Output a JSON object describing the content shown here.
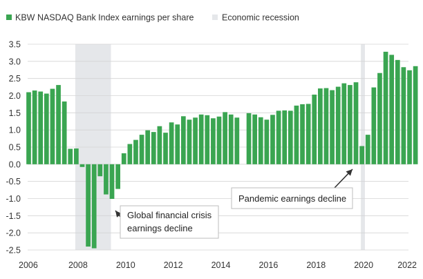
{
  "chart_data": {
    "type": "bar",
    "title": "",
    "xlabel": "",
    "ylabel": "",
    "ylim": [
      -2.5,
      3.5
    ],
    "xlim": [
      2006,
      2022
    ],
    "grid": "horizontal",
    "legend_position": "top-left",
    "colors": {
      "bar": "#3aa551",
      "recession": "#e5e7ea",
      "grid": "#d4d4d4",
      "axis_text": "#333333",
      "annotation_border": "#bdbdbd"
    },
    "legend": [
      {
        "label": "KBW NASDAQ Bank Index earnings per share",
        "color": "#3aa551"
      },
      {
        "label": "Economic recession",
        "color": "#e5e7ea"
      }
    ],
    "y_ticks": [
      "3.5",
      "3.0",
      "2.5",
      "2.0",
      "1.5",
      "1.0",
      "0.5",
      "0.0",
      "-0.5",
      "-1.0",
      "-1.5",
      "-2.0",
      "-2.5"
    ],
    "x_ticks": [
      "2006",
      "2008",
      "2010",
      "2012",
      "2014",
      "2016",
      "2018",
      "2020",
      "2022"
    ],
    "recessions": [
      {
        "start": 2008.0,
        "end": 2009.5
      },
      {
        "start": 2020.0,
        "end": 2020.17
      }
    ],
    "series": [
      {
        "name": "KBW NASDAQ Bank Index earnings per share",
        "points": [
          {
            "x": 2006.0,
            "y": 2.1
          },
          {
            "x": 2006.25,
            "y": 2.15
          },
          {
            "x": 2006.5,
            "y": 2.12
          },
          {
            "x": 2006.75,
            "y": 2.06
          },
          {
            "x": 2007.0,
            "y": 2.2
          },
          {
            "x": 2007.25,
            "y": 2.31
          },
          {
            "x": 2007.5,
            "y": 1.83
          },
          {
            "x": 2007.75,
            "y": 0.45
          },
          {
            "x": 2008.0,
            "y": 0.46
          },
          {
            "x": 2008.25,
            "y": -0.08
          },
          {
            "x": 2008.5,
            "y": -2.4
          },
          {
            "x": 2008.75,
            "y": -2.45
          },
          {
            "x": 2009.0,
            "y": -0.35
          },
          {
            "x": 2009.25,
            "y": -0.88
          },
          {
            "x": 2009.5,
            "y": -1.01
          },
          {
            "x": 2009.75,
            "y": -0.72
          },
          {
            "x": 2010.0,
            "y": 0.32
          },
          {
            "x": 2010.25,
            "y": 0.59
          },
          {
            "x": 2010.5,
            "y": 0.71
          },
          {
            "x": 2010.75,
            "y": 0.86
          },
          {
            "x": 2011.0,
            "y": 0.99
          },
          {
            "x": 2011.25,
            "y": 0.94
          },
          {
            "x": 2011.5,
            "y": 1.11
          },
          {
            "x": 2011.75,
            "y": 0.92
          },
          {
            "x": 2012.0,
            "y": 1.22
          },
          {
            "x": 2012.25,
            "y": 1.16
          },
          {
            "x": 2012.5,
            "y": 1.4
          },
          {
            "x": 2012.75,
            "y": 1.3
          },
          {
            "x": 2013.0,
            "y": 1.36
          },
          {
            "x": 2013.25,
            "y": 1.45
          },
          {
            "x": 2013.5,
            "y": 1.43
          },
          {
            "x": 2013.75,
            "y": 1.34
          },
          {
            "x": 2014.0,
            "y": 1.39
          },
          {
            "x": 2014.25,
            "y": 1.52
          },
          {
            "x": 2014.5,
            "y": 1.45
          },
          {
            "x": 2014.75,
            "y": 1.36
          },
          {
            "x": 2015.0,
            "y": null
          },
          {
            "x": 2015.25,
            "y": 1.49
          },
          {
            "x": 2015.5,
            "y": 1.45
          },
          {
            "x": 2015.75,
            "y": 1.37
          },
          {
            "x": 2016.0,
            "y": 1.3
          },
          {
            "x": 2016.25,
            "y": 1.44
          },
          {
            "x": 2016.5,
            "y": 1.56
          },
          {
            "x": 2016.75,
            "y": 1.57
          },
          {
            "x": 2017.0,
            "y": 1.56
          },
          {
            "x": 2017.25,
            "y": 1.71
          },
          {
            "x": 2017.5,
            "y": 1.75
          },
          {
            "x": 2017.75,
            "y": 1.76
          },
          {
            "x": 2018.0,
            "y": 2.03
          },
          {
            "x": 2018.25,
            "y": 2.21
          },
          {
            "x": 2018.5,
            "y": 2.22
          },
          {
            "x": 2018.75,
            "y": 2.16
          },
          {
            "x": 2019.0,
            "y": 2.26
          },
          {
            "x": 2019.25,
            "y": 2.36
          },
          {
            "x": 2019.5,
            "y": 2.31
          },
          {
            "x": 2019.75,
            "y": 2.39
          },
          {
            "x": 2020.0,
            "y": 0.53
          },
          {
            "x": 2020.25,
            "y": 0.86
          },
          {
            "x": 2020.5,
            "y": 2.24
          },
          {
            "x": 2020.75,
            "y": 2.66
          },
          {
            "x": 2021.0,
            "y": 3.28
          },
          {
            "x": 2021.25,
            "y": 3.19
          },
          {
            "x": 2021.5,
            "y": 3.04
          },
          {
            "x": 2021.75,
            "y": 2.83
          },
          {
            "x": 2022.0,
            "y": 2.74
          },
          {
            "x": 2022.25,
            "y": 2.86
          }
        ]
      }
    ],
    "annotations": [
      {
        "text_lines": [
          "Global financial crisis",
          "earnings decline"
        ],
        "target_x": 2009.1,
        "target_y": -1.05
      },
      {
        "text_lines": [
          "Pandemic earnings decline"
        ],
        "target_x": 2019.95,
        "target_y": -0.05
      }
    ]
  }
}
